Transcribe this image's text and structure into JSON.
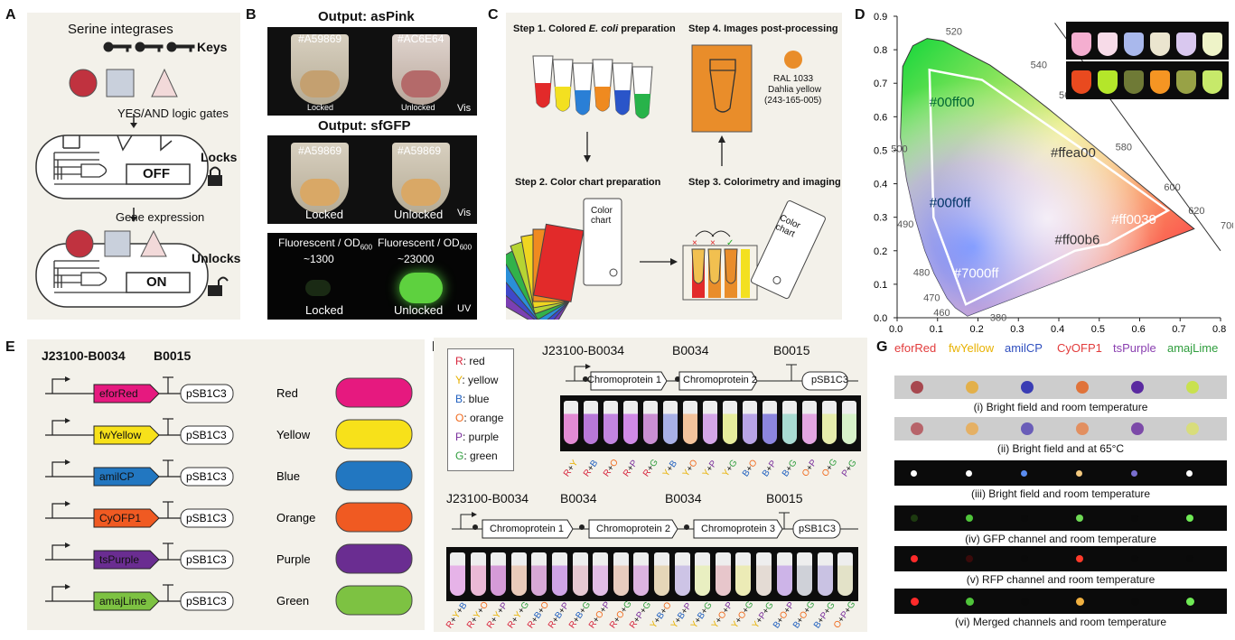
{
  "panels": {
    "A": {
      "label": "A",
      "serine": "Serine integrases",
      "keys": "Keys",
      "yes_and": "YES/AND logic gates",
      "locks": "Locks",
      "off": "OFF",
      "gene_expression": "Gene expression",
      "unlocks": "Unlocks",
      "on": "ON"
    },
    "B": {
      "label": "B",
      "title1": "Output: asPink",
      "hex1a": "#A59869",
      "hex1b": "#AC6E64",
      "locked": "Locked",
      "unlocked": "Unlocked",
      "vis": "Vis",
      "title2": "Output: sfGFP",
      "hex2a": "#A59869",
      "hex2b": "#A59869",
      "locked2": "Locked",
      "unlocked2": "Unlocked",
      "vis2": "Vis",
      "fluor1": "Fluorescent / OD",
      "fluor_sub": "600",
      "fluor1_val": "~1300",
      "fluor2_val": "~23000",
      "locked3": "Locked",
      "unlocked3": "Unlocked",
      "uv": "UV"
    },
    "C": {
      "label": "C",
      "step1_prefix": "Step 1. Colored ",
      "step1_italic": "E. coli",
      "step1_suffix": " preparation",
      "step2": "Step 2. Color chart preparation",
      "step3": "Step 3. Colorimetry and imaging",
      "step4": "Step 4. Images post-processing",
      "ral1": "RAL 1033",
      "ral2": "Dahlia yellow",
      "ral3": "(243-165-005)",
      "color_chart_a": "Color",
      "color_chart_b": "chart",
      "color_chart2_a": "Color",
      "color_chart2_b": "chart",
      "ral_color": "#e98d2a"
    },
    "D": {
      "label": "D",
      "y_ticks": [
        "0.9",
        "0.8",
        "0.7",
        "0.6",
        "0.5",
        "0.4",
        "0.3",
        "0.2",
        "0.1",
        "0.0"
      ],
      "x_ticks": [
        "0.0",
        "0.1",
        "0.2",
        "0.3",
        "0.4",
        "0.5",
        "0.6",
        "0.7",
        "0.8"
      ],
      "wavelengths": [
        "520",
        "540",
        "560",
        "580",
        "600",
        "620",
        "700",
        "500",
        "490",
        "480",
        "470",
        "460",
        "380"
      ],
      "points": [
        "#00ff00",
        "#ffea00",
        "#00f0ff",
        "#ff0039",
        "#ff00b6",
        "#7000ff"
      ]
    },
    "E": {
      "label": "E",
      "promoter": "J23100-B0034",
      "terminator": "B0015",
      "rows": [
        {
          "gene": "eforRed",
          "plasmid": "pSB1C3",
          "color_name": "Red",
          "color": "#e6197f"
        },
        {
          "gene": "fwYellow",
          "plasmid": "pSB1C3",
          "color_name": "Yellow",
          "color": "#f7e11a"
        },
        {
          "gene": "amilCP",
          "plasmid": "pSB1C3",
          "color_name": "Blue",
          "color": "#2277c1"
        },
        {
          "gene": "CyOFP1",
          "plasmid": "pSB1C3",
          "color_name": "Orange",
          "color": "#f05a22"
        },
        {
          "gene": "tsPurple",
          "plasmid": "pSB1C3",
          "color_name": "Purple",
          "color": "#6a2d91"
        },
        {
          "gene": "amajLime",
          "plasmid": "pSB1C3",
          "color_name": "Green",
          "color": "#7dc242"
        }
      ]
    },
    "F": {
      "label": "F",
      "legend": [
        {
          "k": "R",
          "v": ": red",
          "c": "#d7263d"
        },
        {
          "k": "Y",
          "v": ": yellow",
          "c": "#e8b100"
        },
        {
          "k": "B",
          "v": ": blue",
          "c": "#1f5fbf"
        },
        {
          "k": "O",
          "v": ": orange",
          "c": "#f06a1d"
        },
        {
          "k": "P",
          "v": ": purple",
          "c": "#7a2f9c"
        },
        {
          "k": "G",
          "v": ": green",
          "c": "#2e9d3c"
        }
      ],
      "top_promoter": "J23100-B0034",
      "top_b0034": "B0034",
      "top_b0015": "B0015",
      "cp1": "Chromoprotein 1",
      "cp2": "Chromoprotein 2",
      "plasmid": "pSB1C3",
      "top_combos": [
        "R+Y",
        "R+B",
        "R+O",
        "R+P",
        "R+G",
        "Y+B",
        "Y+O",
        "Y+P",
        "Y+G",
        "B+O",
        "B+P",
        "B+G",
        "O+P",
        "O+G",
        "P+G"
      ],
      "bot_promoter": "J23100-B0034",
      "bot_b0034a": "B0034",
      "bot_b0034b": "B0034",
      "bot_b0015": "B0015",
      "bcp1": "Chromoprotein 1",
      "bcp2": "Chromoprotein 2",
      "bcp3": "Chromoprotein 3",
      "bplasmid": "pSB1C3",
      "bot_combos": [
        "R+Y+B",
        "R+Y+O",
        "R+Y+P",
        "R+Y+G",
        "R+B+O",
        "R+B+P",
        "R+B+G",
        "R+O+P",
        "R+O+G",
        "R+P+G",
        "Y+B+O",
        "Y+B+P",
        "Y+B+G",
        "Y+O+P",
        "Y+O+G",
        "Y+P+G",
        "B+O+P",
        "B+O+G",
        "B+P+G",
        "O+P+G"
      ]
    },
    "G": {
      "label": "G",
      "headers": [
        {
          "t": "eforRed",
          "c": "#e23b3b"
        },
        {
          "t": "fwYellow",
          "c": "#e8b100"
        },
        {
          "t": "amilCP",
          "c": "#2f4fbf"
        },
        {
          "t": "CyOFP1",
          "c": "#e23b3b"
        },
        {
          "t": "tsPurple",
          "c": "#8a3fb0"
        },
        {
          "t": "amajLime",
          "c": "#2e9d3c"
        }
      ],
      "captions": [
        "(i) Bright field and room temperature",
        "(ii) Bright field and at 65°C",
        "(iii) Bright field and room temperature",
        "(iv) GFP channel and room temperature",
        "(v) RFP channel and room temperature",
        "(vi) Merged channels and room temperature"
      ]
    }
  }
}
